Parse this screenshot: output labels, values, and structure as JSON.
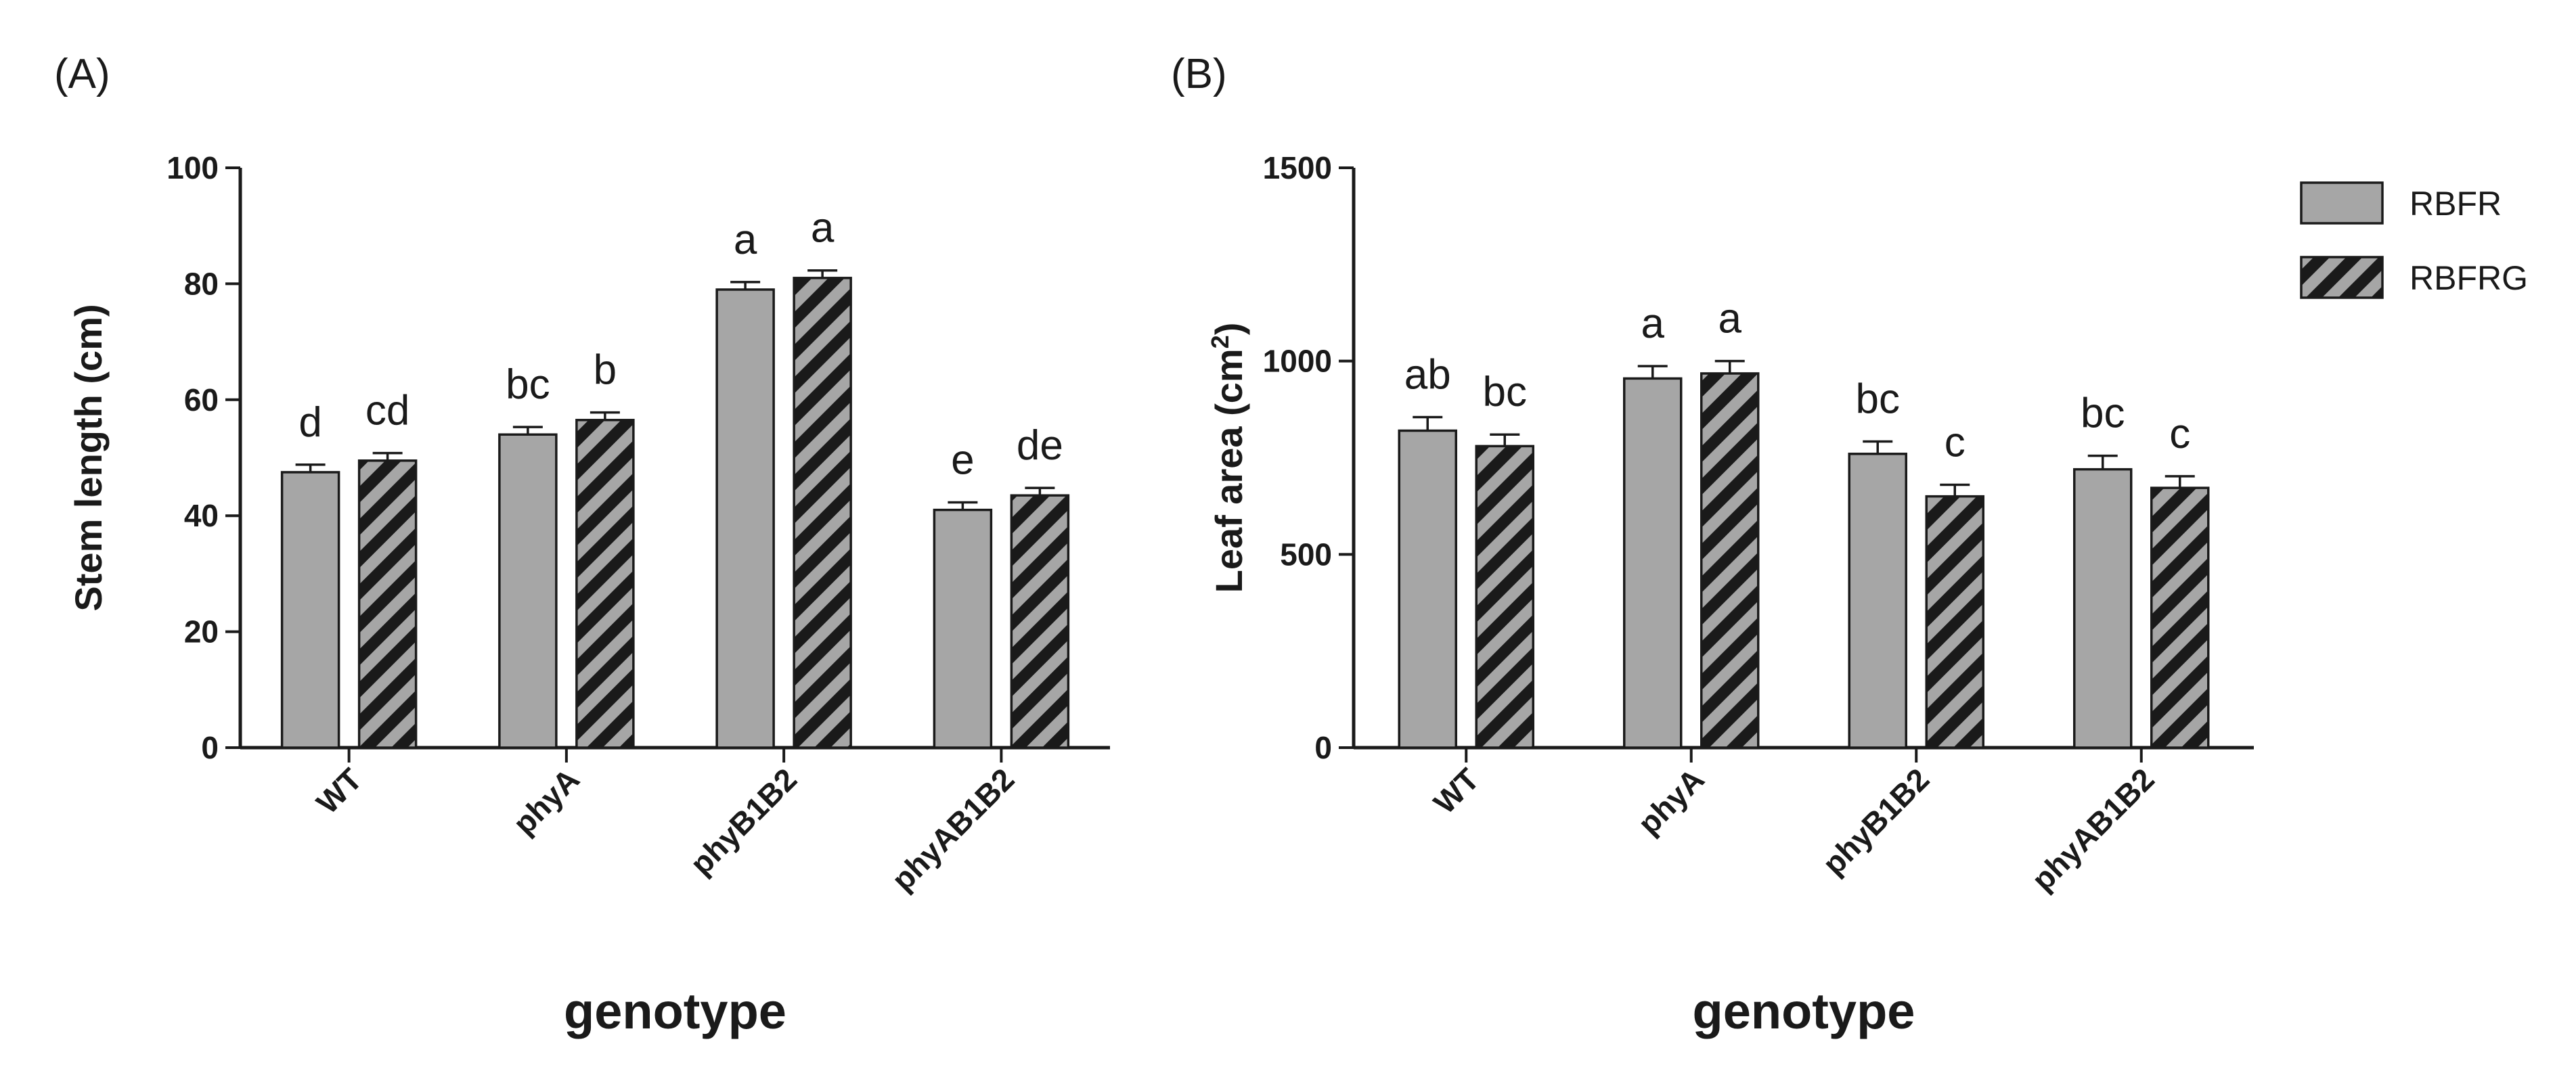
{
  "colors": {
    "bar_fill": "#a6a6a6",
    "hatch": "#1a1a1a",
    "axis": "#1a1a1a",
    "background": "#ffffff"
  },
  "legend": {
    "position": "top-right",
    "entries": [
      {
        "name": "RBFR",
        "pattern": "solid-grey"
      },
      {
        "name": "RBFRG",
        "pattern": "diagonal-hatch"
      }
    ]
  },
  "chart_data": [
    {
      "panel": "(A)",
      "type": "bar",
      "xlabel": "genotype",
      "ylabel": "Stem length (cm)",
      "ylim": [
        0,
        100
      ],
      "yticks": [
        "0",
        "20",
        "40",
        "60",
        "80",
        "100"
      ],
      "categories": [
        "WT",
        "phyA",
        "phyB1B2",
        "phyAB1B2"
      ],
      "series": [
        {
          "name": "RBFR",
          "values": [
            47.5,
            54,
            79,
            41
          ],
          "errors": [
            1.3,
            1.3,
            1.3,
            1.3
          ],
          "letters": [
            "d",
            "bc",
            "a",
            "e"
          ]
        },
        {
          "name": "RBFRG",
          "values": [
            49.5,
            56.5,
            81,
            43.5
          ],
          "errors": [
            1.3,
            1.3,
            1.3,
            1.3
          ],
          "letters": [
            "cd",
            "b",
            "a",
            "de"
          ]
        }
      ]
    },
    {
      "panel": "(B)",
      "type": "bar",
      "xlabel": "genotype",
      "ylabel": "Leaf area (cm²)",
      "ylabel_main": "Leaf area (cm",
      "ylabel_sup": "2",
      "ylabel_end": ")",
      "ylim": [
        0,
        1500
      ],
      "yticks": [
        "0",
        "500",
        "1000",
        "1500"
      ],
      "categories": [
        "WT",
        "phyA",
        "phyB1B2",
        "phyAB1B2"
      ],
      "series": [
        {
          "name": "RBFR",
          "values": [
            820,
            955,
            760,
            720
          ],
          "errors": [
            35,
            32,
            32,
            35
          ],
          "letters": [
            "ab",
            "a",
            "bc",
            "bc"
          ]
        },
        {
          "name": "RBFRG",
          "values": [
            780,
            968,
            650,
            672
          ],
          "errors": [
            30,
            32,
            30,
            30
          ],
          "letters": [
            "bc",
            "a",
            "c",
            "c"
          ]
        }
      ]
    }
  ]
}
